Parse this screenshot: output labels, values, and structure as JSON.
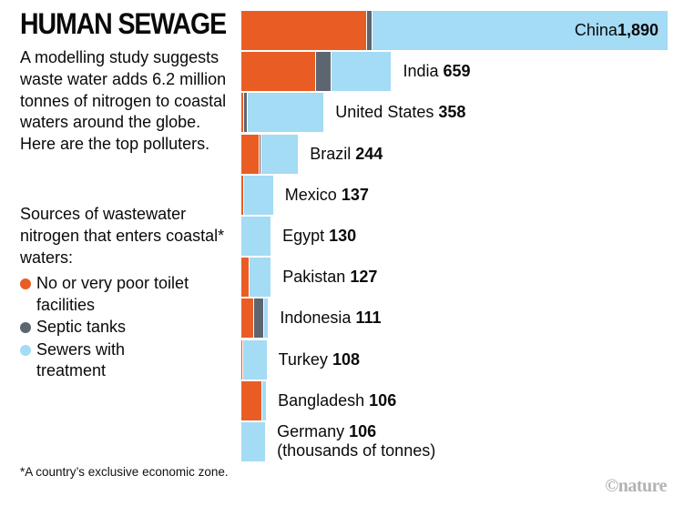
{
  "title": "HUMAN SEWAGE",
  "intro": "A modelling study suggests waste water adds 6.2 million tonnes of nitrogen to coastal waters around the globe. Here are the top polluters.",
  "sources_heading": "Sources of wastewater nitrogen that enters coastal* waters:",
  "legend": [
    {
      "key": "toilet",
      "label": "No or very poor toilet facilities",
      "color": "#E95D25"
    },
    {
      "key": "septic",
      "label": "Septic tanks",
      "color": "#5D6570"
    },
    {
      "key": "sewer",
      "label": "Sewers with treatment",
      "color": "#A4DBF5"
    }
  ],
  "footnote": "*A country’s exclusive economic zone.",
  "credit": "©nature",
  "colors": {
    "orange": "#E95D25",
    "gray": "#5D6570",
    "blue": "#A4DBF5",
    "credit_gray": "#b3b3b3"
  },
  "chart_data": {
    "type": "bar",
    "orientation": "horizontal",
    "stacked": true,
    "xmax": 1890,
    "unit_note": "(thousands of tonnes)",
    "series_names": [
      "No or very poor toilet facilities",
      "Septic tanks",
      "Sewers with treatment"
    ],
    "rows": [
      {
        "country": "China",
        "total_display": "1,890",
        "total": 1890,
        "label_inside": true,
        "segments": {
          "toilet": 557,
          "septic": 19,
          "sewer": 1314
        }
      },
      {
        "country": "India",
        "total_display": "659",
        "total": 659,
        "segments": {
          "toilet": 330,
          "septic": 62,
          "sewer": 267
        }
      },
      {
        "country": "United States",
        "total_display": "358",
        "total": 358,
        "segments": {
          "toilet": 8,
          "septic": 13,
          "sewer": 337
        }
      },
      {
        "country": "Brazil",
        "total_display": "244",
        "total": 244,
        "segments": {
          "toilet": 75,
          "septic": 4,
          "sewer": 165
        }
      },
      {
        "country": "Mexico",
        "total_display": "137",
        "total": 137,
        "segments": {
          "toilet": 8,
          "septic": 0,
          "sewer": 129
        }
      },
      {
        "country": "Egypt",
        "total_display": "130",
        "total": 130,
        "segments": {
          "toilet": 0,
          "septic": 0,
          "sewer": 130
        }
      },
      {
        "country": "Pakistan",
        "total_display": "127",
        "total": 127,
        "segments": {
          "toilet": 33,
          "septic": 0,
          "sewer": 94
        }
      },
      {
        "country": "Indonesia",
        "total_display": "111",
        "total": 111,
        "segments": {
          "toilet": 52,
          "septic": 40,
          "sewer": 19
        }
      },
      {
        "country": "Turkey",
        "total_display": "108",
        "total": 108,
        "segments": {
          "toilet": 4,
          "septic": 0,
          "sewer": 104
        }
      },
      {
        "country": "Bangladesh",
        "total_display": "106",
        "total": 106,
        "segments": {
          "toilet": 88,
          "septic": 0,
          "sewer": 18
        }
      },
      {
        "country": "Germany",
        "total_display": "106",
        "total": 106,
        "sublabel": "(thousands of tonnes)",
        "segments": {
          "toilet": 0,
          "septic": 0,
          "sewer": 106
        }
      }
    ]
  }
}
